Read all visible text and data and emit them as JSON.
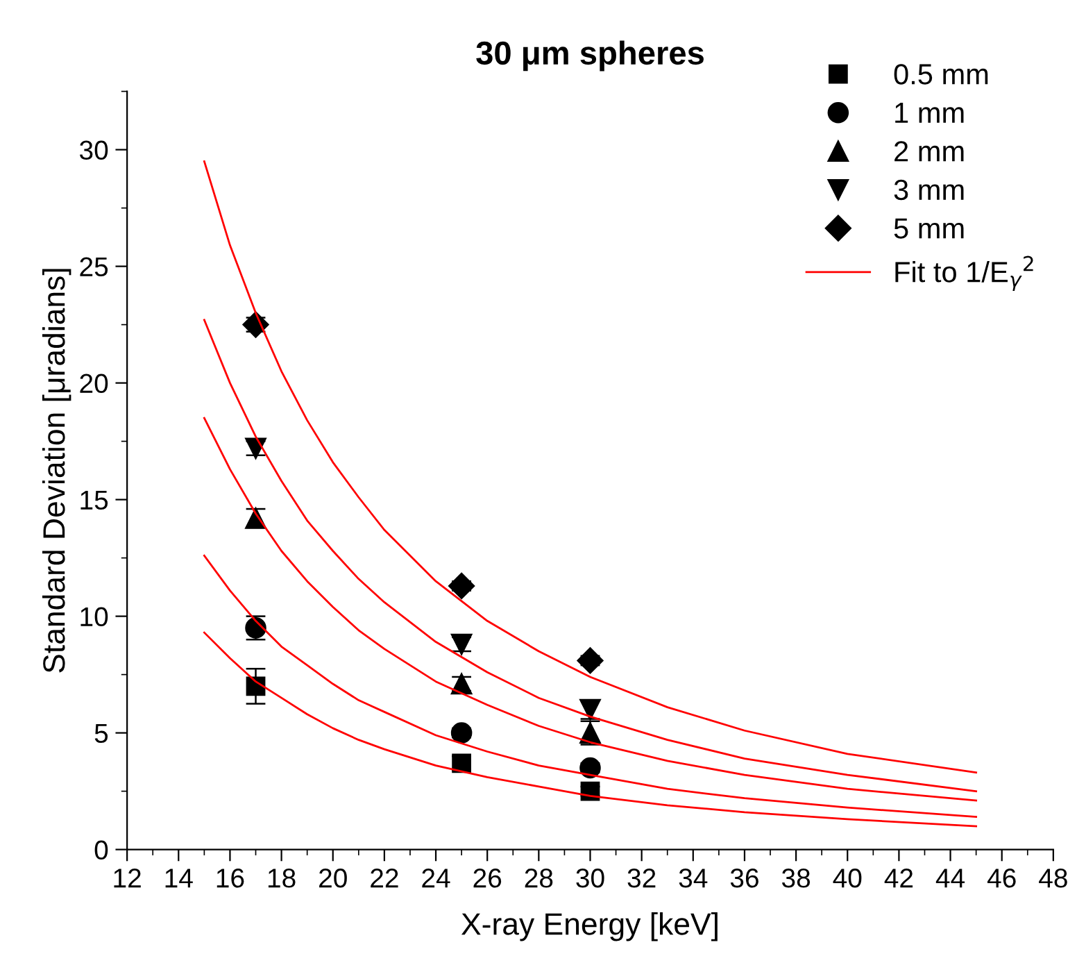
{
  "chart_data": {
    "type": "scatter",
    "title": "30 μm spheres",
    "xlabel": "X-ray Energy [keV]",
    "ylabel": "Standard Deviation [μradians]",
    "xlim": [
      12,
      48
    ],
    "xticks": [
      12,
      14,
      16,
      18,
      20,
      22,
      24,
      26,
      28,
      30,
      32,
      34,
      36,
      38,
      40,
      42,
      44,
      46,
      48
    ],
    "ylim": [
      0,
      32.5
    ],
    "yticks": [
      0,
      5,
      10,
      15,
      20,
      25,
      30
    ],
    "grid": false,
    "legend": "top right",
    "series": [
      {
        "name": "0.5 mm",
        "marker": "square",
        "color": "#000000",
        "x": [
          17,
          25,
          30
        ],
        "values": [
          7.0,
          3.7,
          2.5
        ],
        "errors": [
          0.75,
          0.3,
          0.2
        ]
      },
      {
        "name": "1 mm",
        "marker": "circle",
        "color": "#000000",
        "x": [
          17,
          25,
          30
        ],
        "values": [
          9.5,
          5.0,
          3.5
        ],
        "errors": [
          0.5,
          0.2,
          0.2
        ]
      },
      {
        "name": "2 mm",
        "marker": "triangle",
        "color": "#000000",
        "x": [
          17,
          25,
          30
        ],
        "values": [
          14.2,
          7.1,
          5.0
        ],
        "errors": [
          0.4,
          0.3,
          0.5
        ]
      },
      {
        "name": "3 mm",
        "marker": "triangle_down",
        "color": "#000000",
        "x": [
          17,
          25,
          30
        ],
        "values": [
          17.2,
          8.8,
          6.0
        ],
        "errors": [
          0.3,
          0.3,
          0.4
        ]
      },
      {
        "name": "5 mm",
        "marker": "diamond",
        "color": "#000000",
        "x": [
          17,
          25,
          30
        ],
        "values": [
          22.5,
          11.3,
          8.1
        ],
        "errors": [
          0.3,
          0.2,
          0.2
        ]
      },
      {
        "name": "Fit to 1/E$_{γ}$$^{2}$",
        "type": "line",
        "color": "#ff0000",
        "x": [
          15,
          16,
          17,
          18,
          19,
          20,
          21,
          22,
          24,
          26,
          28,
          30,
          33,
          36,
          40,
          45
        ],
        "values": [
          29.5,
          25.9,
          23.0,
          20.5,
          18.4,
          16.6,
          15.1,
          13.7,
          11.5,
          9.8,
          8.5,
          7.4,
          6.1,
          5.1,
          4.1,
          3.3
        ]
      },
      {
        "type": "line",
        "color": "#ff0000",
        "x": [
          15,
          16,
          17,
          18,
          19,
          20,
          21,
          22,
          24,
          26,
          28,
          30,
          33,
          36,
          40,
          45
        ],
        "values": [
          22.7,
          20.0,
          17.7,
          15.8,
          14.1,
          12.8,
          11.6,
          10.6,
          8.9,
          7.6,
          6.5,
          5.7,
          4.7,
          3.9,
          3.2,
          2.5
        ]
      },
      {
        "type": "line",
        "color": "#ff0000",
        "x": [
          15,
          16,
          17,
          18,
          19,
          20,
          21,
          22,
          24,
          26,
          28,
          30,
          33,
          36,
          40,
          45
        ],
        "values": [
          18.5,
          16.3,
          14.4,
          12.8,
          11.5,
          10.4,
          9.4,
          8.6,
          7.2,
          6.2,
          5.3,
          4.6,
          3.8,
          3.2,
          2.6,
          2.1
        ]
      },
      {
        "type": "line",
        "color": "#ff0000",
        "x": [
          15,
          16,
          17,
          18,
          19,
          20,
          21,
          22,
          24,
          26,
          28,
          30,
          33,
          36,
          40,
          45
        ],
        "values": [
          12.6,
          11.1,
          9.8,
          8.7,
          7.9,
          7.1,
          6.4,
          5.9,
          4.9,
          4.2,
          3.6,
          3.2,
          2.6,
          2.2,
          1.8,
          1.4
        ]
      },
      {
        "type": "line",
        "color": "#ff0000",
        "x": [
          15,
          16,
          17,
          18,
          19,
          20,
          21,
          22,
          24,
          26,
          28,
          30,
          33,
          36,
          40,
          45
        ],
        "values": [
          9.3,
          8.2,
          7.2,
          6.5,
          5.8,
          5.2,
          4.7,
          4.3,
          3.6,
          3.1,
          2.7,
          2.3,
          1.9,
          1.6,
          1.3,
          1.0
        ]
      }
    ]
  }
}
